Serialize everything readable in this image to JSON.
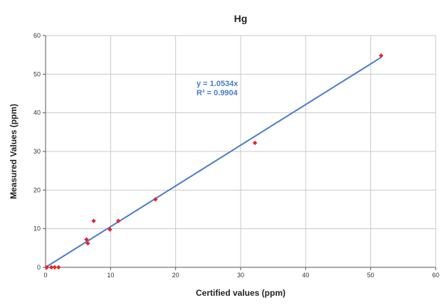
{
  "chart_data": {
    "type": "scatter",
    "title": "Hg",
    "xlabel": "Certified values (ppm)",
    "ylabel": "Measured Values (ppm)",
    "xlim": [
      0,
      60
    ],
    "ylim": [
      0,
      60
    ],
    "x_ticks": [
      "0",
      "10",
      "20",
      "30",
      "40",
      "50",
      "60"
    ],
    "y_ticks": [
      "0",
      "10",
      "20",
      "30",
      "40",
      "50",
      "60"
    ],
    "grid": true,
    "series": [
      {
        "points": [
          {
            "x": 0.2,
            "y": 0.0
          },
          {
            "x": 0.9,
            "y": 0.0
          },
          {
            "x": 1.4,
            "y": 0.0
          },
          {
            "x": 2.0,
            "y": 0.0
          },
          {
            "x": 6.3,
            "y": 7.2
          },
          {
            "x": 6.5,
            "y": 6.2
          },
          {
            "x": 7.4,
            "y": 12.0
          },
          {
            "x": 9.9,
            "y": 9.8
          },
          {
            "x": 11.2,
            "y": 12.0
          },
          {
            "x": 16.9,
            "y": 17.6
          },
          {
            "x": 32.2,
            "y": 32.2
          },
          {
            "x": 51.6,
            "y": 54.8
          }
        ]
      }
    ],
    "trendline": {
      "slope": 1.0534,
      "x_range": [
        0,
        51.6
      ],
      "equation": "y = 1.0534x",
      "r_squared": "R² = 0.9904"
    },
    "colors": {
      "points": "#e8242a",
      "trendline": "#4a7cc9",
      "grid": "#c8c8c8",
      "axis": "#555555"
    }
  }
}
